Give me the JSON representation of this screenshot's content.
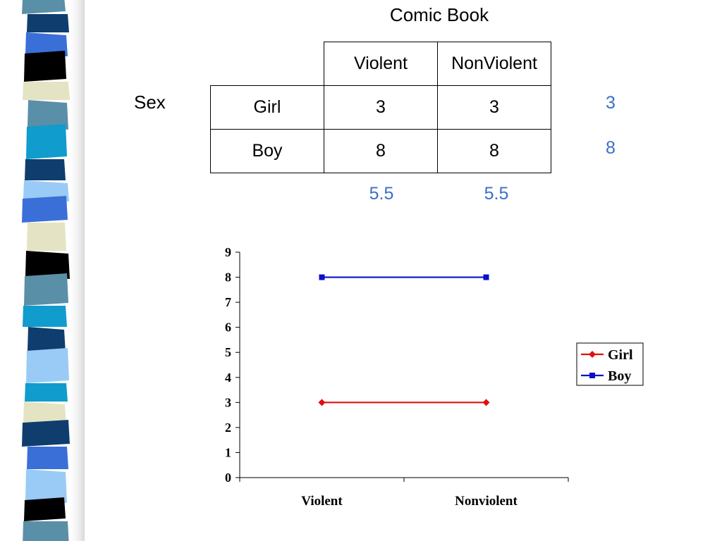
{
  "table": {
    "header": "Comic Book",
    "row_group_label": "Sex",
    "columns": [
      "Violent",
      "NonViolent"
    ],
    "rows": [
      {
        "label": "Girl",
        "values": [
          "3",
          "3"
        ],
        "mean": "3"
      },
      {
        "label": "Boy",
        "values": [
          "8",
          "8"
        ],
        "mean": "8"
      }
    ],
    "column_means": [
      "5.5",
      "5.5"
    ]
  },
  "colors": {
    "row_margin_text": "#3a6fc9",
    "girl_series": "#e01010",
    "boy_series": "#0a10c8",
    "stripe_palette": [
      "#5a8fa8",
      "#0f3d6e",
      "#3a6fd8",
      "#000000",
      "#e4e4c4",
      "#109ccc",
      "#9acbf6",
      "#ffffff"
    ]
  },
  "chart_data": {
    "type": "line",
    "categories": [
      "Violent",
      "Nonviolent"
    ],
    "series": [
      {
        "name": "Girl",
        "values": [
          3,
          3
        ],
        "color": "#e01010",
        "marker": "diamond"
      },
      {
        "name": "Boy",
        "values": [
          8,
          8
        ],
        "color": "#0a10c8",
        "marker": "square"
      }
    ],
    "yticks": [
      "0",
      "1",
      "2",
      "3",
      "4",
      "5",
      "6",
      "7",
      "8",
      "9"
    ],
    "ylim": [
      0,
      9
    ],
    "grid": false,
    "legend": "right"
  }
}
